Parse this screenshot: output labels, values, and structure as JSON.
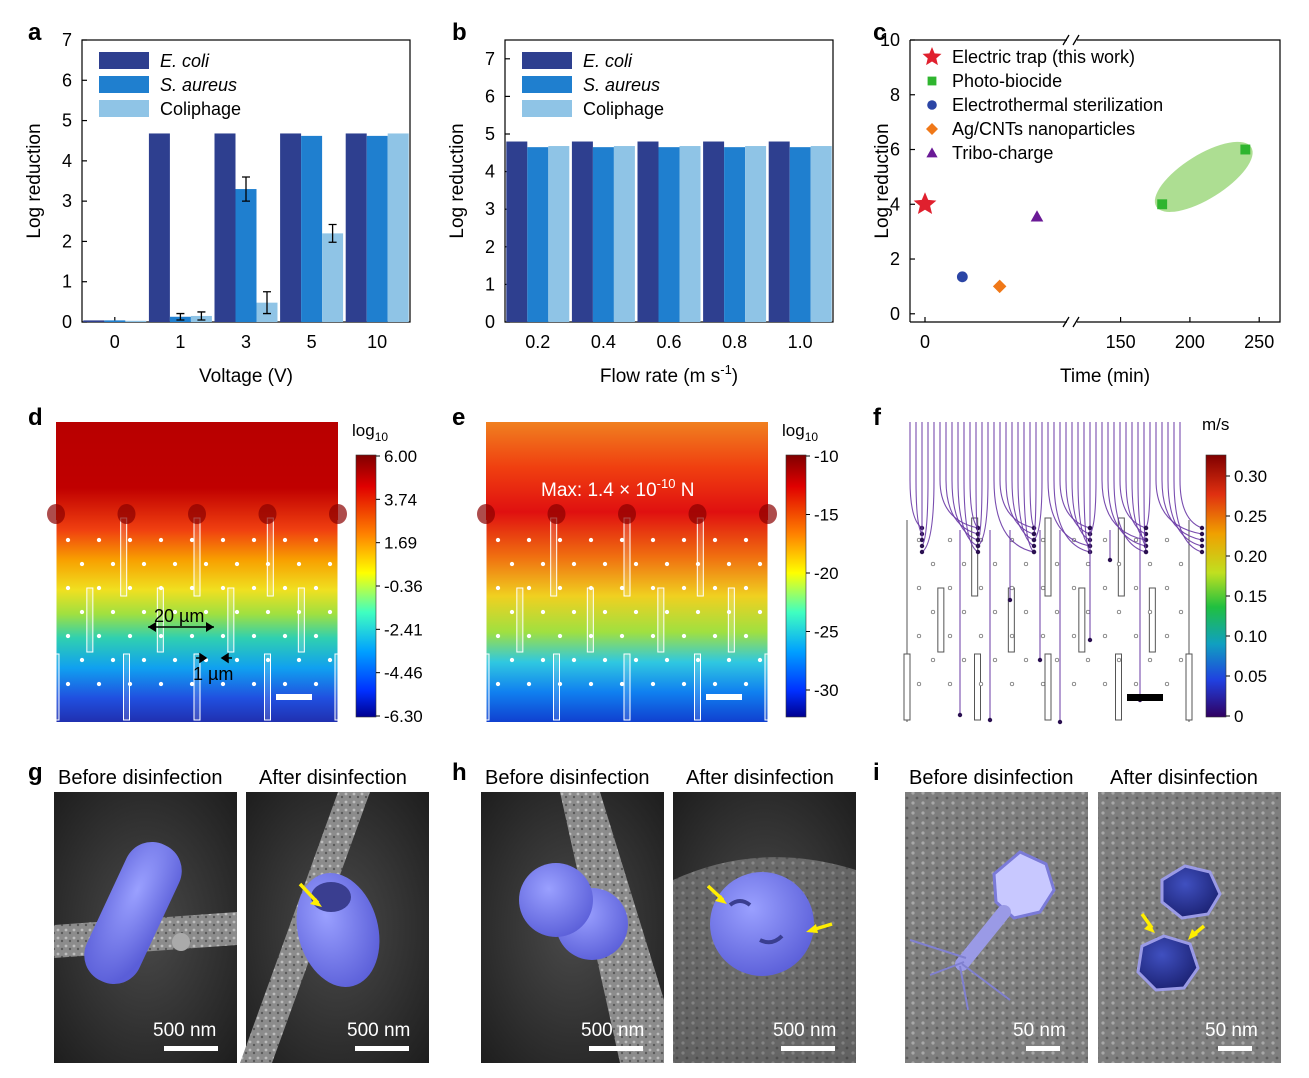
{
  "panels": {
    "a": "a",
    "b": "b",
    "c": "c",
    "d": "d",
    "e": "e",
    "f": "f",
    "g": "g",
    "h": "h",
    "i": "i"
  },
  "colors": {
    "ecoli": "#2e3f8f",
    "saureus": "#1f7fcf",
    "coliphage": "#8fc4e6",
    "electric_trap": "#e0202e",
    "photo_biocide": "#2fb52f",
    "electrothermal": "#2b45a5",
    "ag_cnt": "#f07818",
    "tribo": "#6a1a96",
    "ellipse": "#9fd87f"
  },
  "chart_data": [
    {
      "panel": "a",
      "type": "bar",
      "xlabel": "Voltage (V)",
      "ylabel": "Log reduction",
      "ylim": [
        0,
        7
      ],
      "yticks": [
        "0",
        "1",
        "2",
        "3",
        "4",
        "5",
        "6",
        "7"
      ],
      "categories": [
        "0",
        "1",
        "3",
        "5",
        "10"
      ],
      "legend_position": "top-left",
      "series": [
        {
          "name": "E. coli",
          "italic": true,
          "values": [
            0.04,
            4.68,
            4.68,
            4.68,
            4.68
          ],
          "errors": [
            0,
            0,
            0,
            0,
            0
          ]
        },
        {
          "name": "S. aureus",
          "italic": true,
          "values": [
            0.04,
            0.13,
            3.3,
            4.62,
            4.62
          ],
          "errors": [
            0,
            0.08,
            0.3,
            0,
            0
          ]
        },
        {
          "name": "Coliphage",
          "italic": false,
          "values": [
            0.03,
            0.15,
            0.48,
            2.2,
            4.68
          ],
          "errors": [
            0,
            0.1,
            0.27,
            0.22,
            0
          ]
        }
      ]
    },
    {
      "panel": "b",
      "type": "bar",
      "xlabel": "Flow rate (m s",
      "xlabel_sup": "-1",
      "xlabel_end": ")",
      "ylabel": "Log reduction",
      "ylim": [
        0,
        7.5
      ],
      "yticks": [
        "0",
        "1",
        "2",
        "3",
        "4",
        "5",
        "6",
        "7"
      ],
      "categories": [
        "0.2",
        "0.4",
        "0.6",
        "0.8",
        "1.0"
      ],
      "legend_position": "top-left",
      "series": [
        {
          "name": "E. coli",
          "italic": true,
          "values": [
            4.8,
            4.8,
            4.8,
            4.8,
            4.8
          ]
        },
        {
          "name": "S. aureus",
          "italic": true,
          "values": [
            4.65,
            4.65,
            4.65,
            4.65,
            4.65
          ]
        },
        {
          "name": "Coliphage",
          "italic": false,
          "values": [
            4.68,
            4.68,
            4.68,
            4.68,
            4.68
          ]
        }
      ]
    },
    {
      "panel": "c",
      "type": "scatter",
      "xlabel": "Time (min)",
      "ylabel": "Log reduction",
      "ylim": [
        -0.3,
        10
      ],
      "yticks": [
        "0",
        "2",
        "4",
        "6",
        "8",
        "10"
      ],
      "xticks_left": [
        "0"
      ],
      "xticks_right": [
        "150",
        "200",
        "250"
      ],
      "axis_break": true,
      "legend_position": "top-left",
      "series": [
        {
          "name": "Electric trap (this work)",
          "marker": "star",
          "points": [
            {
              "x": 0,
              "y": 4
            }
          ]
        },
        {
          "name": "Photo-biocide",
          "marker": "square",
          "points": [
            {
              "x": 180,
              "y": 4
            },
            {
              "x": 240,
              "y": 6
            }
          ]
        },
        {
          "name": "Electrothermal sterilization",
          "marker": "circle",
          "points": [
            {
              "x": 20,
              "y": 1.35
            }
          ]
        },
        {
          "name": "Ag/CNTs nanoparticles",
          "marker": "diamond",
          "points": [
            {
              "x": 40,
              "y": 1
            }
          ]
        },
        {
          "name": "Tribo-charge",
          "marker": "triangle",
          "points": [
            {
              "x": 60,
              "y": 3.55
            }
          ]
        }
      ]
    }
  ],
  "sim": {
    "d": {
      "cb_title": "log",
      "cb_sub": "10",
      "cb_ticks": [
        "6.00",
        "3.74",
        "1.69",
        "-0.36",
        "-2.41",
        "-4.46",
        "-6.30"
      ],
      "dim_spacing": "20 µm",
      "dim_gap": "1 µm"
    },
    "e": {
      "cb_title": "log",
      "cb_sub": "10",
      "cb_ticks": [
        "-10",
        "-15",
        "-20",
        "-25",
        "-30"
      ],
      "max_label": "Max: 1.4 × 10",
      "max_sup": "-10",
      "max_unit": " N"
    },
    "f": {
      "cb_title": "m/s",
      "cb_ticks": [
        "0.30",
        "0.25",
        "0.20",
        "0.15",
        "0.10",
        "0.05",
        "0"
      ]
    }
  },
  "micrographs": {
    "g": {
      "before": "Before disinfection",
      "after": "After disinfection",
      "scale_before": "500 nm",
      "scale_after": "500 nm"
    },
    "h": {
      "before": "Before disinfection",
      "after": "After disinfection",
      "scale_before": "500 nm",
      "scale_after": "500 nm"
    },
    "i": {
      "before": "Before disinfection",
      "after": "After disinfection",
      "scale_before": "50 nm",
      "scale_after": "50 nm"
    }
  }
}
